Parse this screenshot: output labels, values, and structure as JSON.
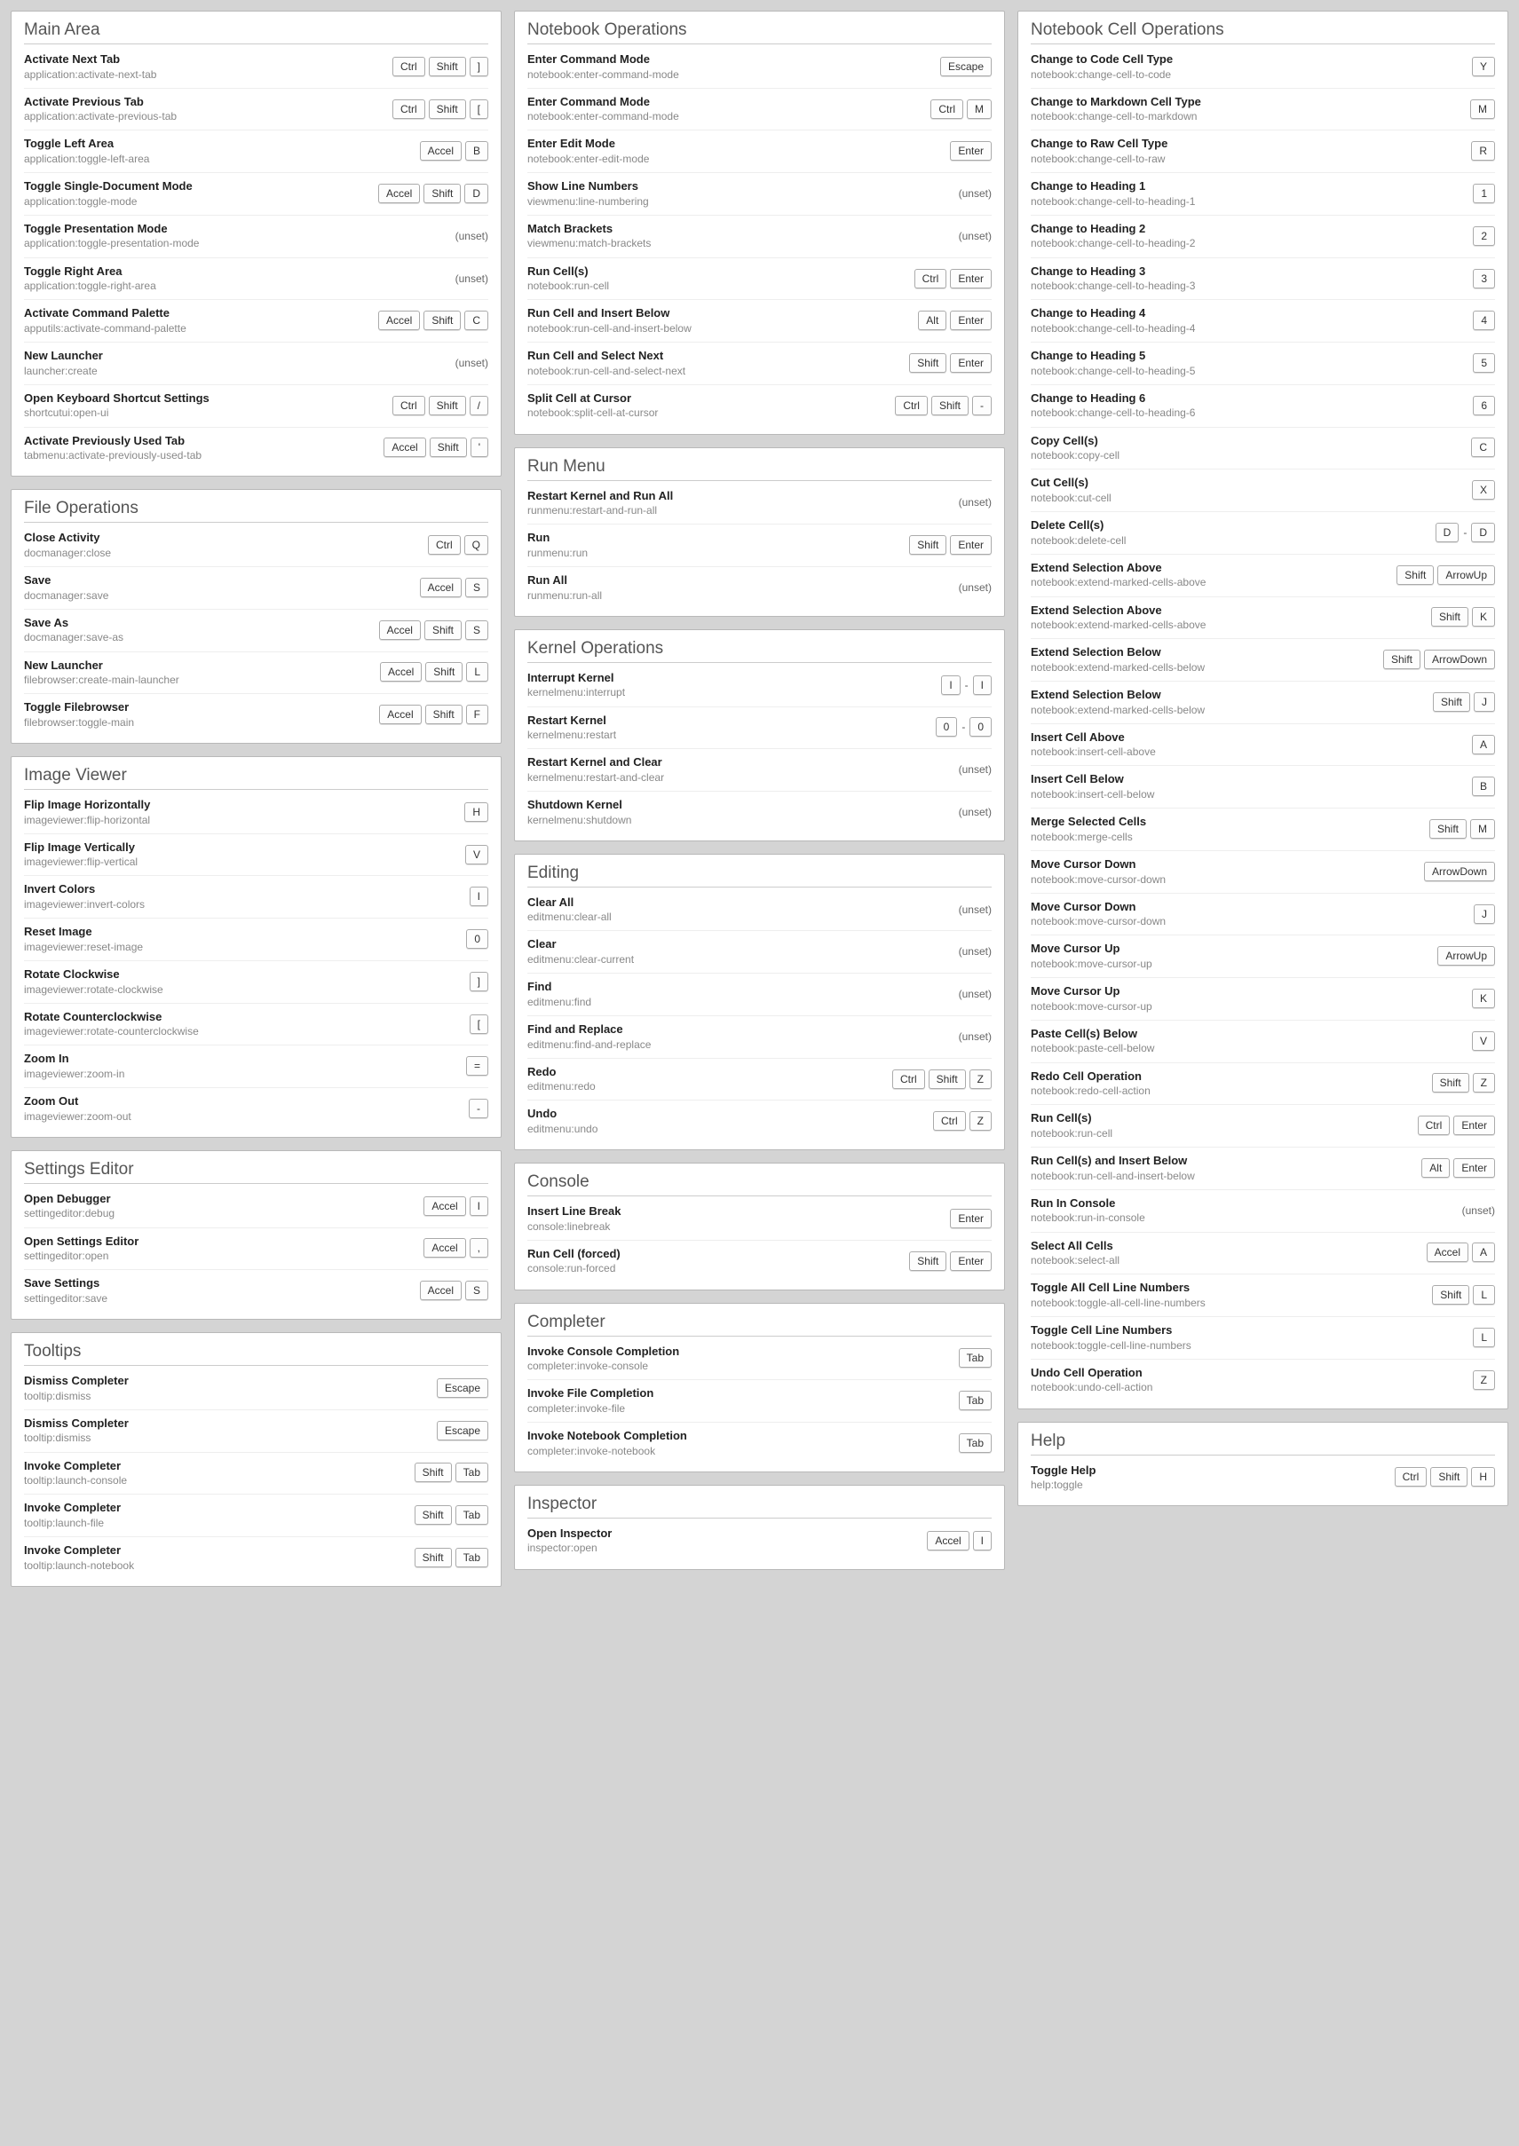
{
  "columns": [
    [
      {
        "title": "Main Area",
        "rows": [
          {
            "label": "Activate Next Tab",
            "cmd": "application:activate-next-tab",
            "keys": [
              "Ctrl",
              "Shift",
              "]"
            ]
          },
          {
            "label": "Activate Previous Tab",
            "cmd": "application:activate-previous-tab",
            "keys": [
              "Ctrl",
              "Shift",
              "["
            ]
          },
          {
            "label": "Toggle Left Area",
            "cmd": "application:toggle-left-area",
            "keys": [
              "Accel",
              "B"
            ]
          },
          {
            "label": "Toggle Single-Document Mode",
            "cmd": "application:toggle-mode",
            "keys": [
              "Accel",
              "Shift",
              "D"
            ]
          },
          {
            "label": "Toggle Presentation Mode",
            "cmd": "application:toggle-presentation-mode",
            "unset": true
          },
          {
            "label": "Toggle Right Area",
            "cmd": "application:toggle-right-area",
            "unset": true
          },
          {
            "label": "Activate Command Palette",
            "cmd": "apputils:activate-command-palette",
            "keys": [
              "Accel",
              "Shift",
              "C"
            ]
          },
          {
            "label": "New Launcher",
            "cmd": "launcher:create",
            "unset": true
          },
          {
            "label": "Open Keyboard Shortcut Settings",
            "cmd": "shortcutui:open-ui",
            "keys": [
              "Ctrl",
              "Shift",
              "/"
            ]
          },
          {
            "label": "Activate Previously Used Tab",
            "cmd": "tabmenu:activate-previously-used-tab",
            "keys": [
              "Accel",
              "Shift",
              "'"
            ]
          }
        ]
      },
      {
        "title": "File Operations",
        "rows": [
          {
            "label": "Close Activity",
            "cmd": "docmanager:close",
            "keys": [
              "Ctrl",
              "Q"
            ]
          },
          {
            "label": "Save",
            "cmd": "docmanager:save",
            "keys": [
              "Accel",
              "S"
            ]
          },
          {
            "label": "Save As",
            "cmd": "docmanager:save-as",
            "keys": [
              "Accel",
              "Shift",
              "S"
            ]
          },
          {
            "label": "New Launcher",
            "cmd": "filebrowser:create-main-launcher",
            "keys": [
              "Accel",
              "Shift",
              "L"
            ]
          },
          {
            "label": "Toggle Filebrowser",
            "cmd": "filebrowser:toggle-main",
            "keys": [
              "Accel",
              "Shift",
              "F"
            ]
          }
        ]
      },
      {
        "title": "Image Viewer",
        "rows": [
          {
            "label": "Flip Image Horizontally",
            "cmd": "imageviewer:flip-horizontal",
            "keys": [
              "H"
            ]
          },
          {
            "label": "Flip Image Vertically",
            "cmd": "imageviewer:flip-vertical",
            "keys": [
              "V"
            ]
          },
          {
            "label": "Invert Colors",
            "cmd": "imageviewer:invert-colors",
            "keys": [
              "I"
            ]
          },
          {
            "label": "Reset Image",
            "cmd": "imageviewer:reset-image",
            "keys": [
              "0"
            ]
          },
          {
            "label": "Rotate Clockwise",
            "cmd": "imageviewer:rotate-clockwise",
            "keys": [
              "]"
            ]
          },
          {
            "label": "Rotate Counterclockwise",
            "cmd": "imageviewer:rotate-counterclockwise",
            "keys": [
              "["
            ]
          },
          {
            "label": "Zoom In",
            "cmd": "imageviewer:zoom-in",
            "keys": [
              "="
            ]
          },
          {
            "label": "Zoom Out",
            "cmd": "imageviewer:zoom-out",
            "keys": [
              "-"
            ]
          }
        ]
      },
      {
        "title": "Settings Editor",
        "rows": [
          {
            "label": "Open Debugger",
            "cmd": "settingeditor:debug",
            "keys": [
              "Accel",
              "I"
            ]
          },
          {
            "label": "Open Settings Editor",
            "cmd": "settingeditor:open",
            "keys": [
              "Accel",
              ","
            ]
          },
          {
            "label": "Save Settings",
            "cmd": "settingeditor:save",
            "keys": [
              "Accel",
              "S"
            ]
          }
        ]
      },
      {
        "title": "Tooltips",
        "rows": [
          {
            "label": "Dismiss Completer",
            "cmd": "tooltip:dismiss",
            "keys": [
              "Escape"
            ]
          },
          {
            "label": "Dismiss Completer",
            "cmd": "tooltip:dismiss",
            "keys": [
              "Escape"
            ]
          },
          {
            "label": "Invoke Completer",
            "cmd": "tooltip:launch-console",
            "keys": [
              "Shift",
              "Tab"
            ]
          },
          {
            "label": "Invoke Completer",
            "cmd": "tooltip:launch-file",
            "keys": [
              "Shift",
              "Tab"
            ]
          },
          {
            "label": "Invoke Completer",
            "cmd": "tooltip:launch-notebook",
            "keys": [
              "Shift",
              "Tab"
            ]
          }
        ]
      }
    ],
    [
      {
        "title": "Notebook Operations",
        "rows": [
          {
            "label": "Enter Command Mode",
            "cmd": "notebook:enter-command-mode",
            "keys": [
              "Escape"
            ]
          },
          {
            "label": "Enter Command Mode",
            "cmd": "notebook:enter-command-mode",
            "keys": [
              "Ctrl",
              "M"
            ]
          },
          {
            "label": "Enter Edit Mode",
            "cmd": "notebook:enter-edit-mode",
            "keys": [
              "Enter"
            ]
          },
          {
            "label": "Show Line Numbers",
            "cmd": "viewmenu:line-numbering",
            "unset": true
          },
          {
            "label": "Match Brackets",
            "cmd": "viewmenu:match-brackets",
            "unset": true
          },
          {
            "label": "Run Cell(s)",
            "cmd": "notebook:run-cell",
            "keys": [
              "Ctrl",
              "Enter"
            ]
          },
          {
            "label": "Run Cell and Insert Below",
            "cmd": "notebook:run-cell-and-insert-below",
            "keys": [
              "Alt",
              "Enter"
            ]
          },
          {
            "label": "Run Cell and Select Next",
            "cmd": "notebook:run-cell-and-select-next",
            "keys": [
              "Shift",
              "Enter"
            ]
          },
          {
            "label": "Split Cell at Cursor",
            "cmd": "notebook:split-cell-at-cursor",
            "keys": [
              "Ctrl",
              "Shift",
              "-"
            ]
          }
        ]
      },
      {
        "title": "Run Menu",
        "rows": [
          {
            "label": "Restart Kernel and Run All",
            "cmd": "runmenu:restart-and-run-all",
            "unset": true
          },
          {
            "label": "Run",
            "cmd": "runmenu:run",
            "keys": [
              "Shift",
              "Enter"
            ]
          },
          {
            "label": "Run All",
            "cmd": "runmenu:run-all",
            "unset": true
          }
        ]
      },
      {
        "title": "Kernel Operations",
        "rows": [
          {
            "label": "Interrupt Kernel",
            "cmd": "kernelmenu:interrupt",
            "keys": [
              "I",
              "I"
            ],
            "chord": true
          },
          {
            "label": "Restart Kernel",
            "cmd": "kernelmenu:restart",
            "keys": [
              "0",
              "0"
            ],
            "chord": true
          },
          {
            "label": "Restart Kernel and Clear",
            "cmd": "kernelmenu:restart-and-clear",
            "unset": true
          },
          {
            "label": "Shutdown Kernel",
            "cmd": "kernelmenu:shutdown",
            "unset": true
          }
        ]
      },
      {
        "title": "Editing",
        "rows": [
          {
            "label": "Clear All",
            "cmd": "editmenu:clear-all",
            "unset": true
          },
          {
            "label": "Clear",
            "cmd": "editmenu:clear-current",
            "unset": true
          },
          {
            "label": "Find",
            "cmd": "editmenu:find",
            "unset": true
          },
          {
            "label": "Find and Replace",
            "cmd": "editmenu:find-and-replace",
            "unset": true
          },
          {
            "label": "Redo",
            "cmd": "editmenu:redo",
            "keys": [
              "Ctrl",
              "Shift",
              "Z"
            ]
          },
          {
            "label": "Undo",
            "cmd": "editmenu:undo",
            "keys": [
              "Ctrl",
              "Z"
            ]
          }
        ]
      },
      {
        "title": "Console",
        "rows": [
          {
            "label": "Insert Line Break",
            "cmd": "console:linebreak",
            "keys": [
              "Enter"
            ]
          },
          {
            "label": "Run Cell (forced)",
            "cmd": "console:run-forced",
            "keys": [
              "Shift",
              "Enter"
            ]
          }
        ]
      },
      {
        "title": "Completer",
        "rows": [
          {
            "label": "Invoke Console Completion",
            "cmd": "completer:invoke-console",
            "keys": [
              "Tab"
            ]
          },
          {
            "label": "Invoke File Completion",
            "cmd": "completer:invoke-file",
            "keys": [
              "Tab"
            ]
          },
          {
            "label": "Invoke Notebook Completion",
            "cmd": "completer:invoke-notebook",
            "keys": [
              "Tab"
            ]
          }
        ]
      },
      {
        "title": "Inspector",
        "rows": [
          {
            "label": "Open Inspector",
            "cmd": "inspector:open",
            "keys": [
              "Accel",
              "I"
            ]
          }
        ]
      }
    ],
    [
      {
        "title": "Notebook Cell Operations",
        "rows": [
          {
            "label": "Change to Code Cell Type",
            "cmd": "notebook:change-cell-to-code",
            "keys": [
              "Y"
            ]
          },
          {
            "label": "Change to Markdown Cell Type",
            "cmd": "notebook:change-cell-to-markdown",
            "keys": [
              "M"
            ]
          },
          {
            "label": "Change to Raw Cell Type",
            "cmd": "notebook:change-cell-to-raw",
            "keys": [
              "R"
            ]
          },
          {
            "label": "Change to Heading 1",
            "cmd": "notebook:change-cell-to-heading-1",
            "keys": [
              "1"
            ]
          },
          {
            "label": "Change to Heading 2",
            "cmd": "notebook:change-cell-to-heading-2",
            "keys": [
              "2"
            ]
          },
          {
            "label": "Change to Heading 3",
            "cmd": "notebook:change-cell-to-heading-3",
            "keys": [
              "3"
            ]
          },
          {
            "label": "Change to Heading 4",
            "cmd": "notebook:change-cell-to-heading-4",
            "keys": [
              "4"
            ]
          },
          {
            "label": "Change to Heading 5",
            "cmd": "notebook:change-cell-to-heading-5",
            "keys": [
              "5"
            ]
          },
          {
            "label": "Change to Heading 6",
            "cmd": "notebook:change-cell-to-heading-6",
            "keys": [
              "6"
            ]
          },
          {
            "label": "Copy Cell(s)",
            "cmd": "notebook:copy-cell",
            "keys": [
              "C"
            ]
          },
          {
            "label": "Cut Cell(s)",
            "cmd": "notebook:cut-cell",
            "keys": [
              "X"
            ]
          },
          {
            "label": "Delete Cell(s)",
            "cmd": "notebook:delete-cell",
            "keys": [
              "D",
              "D"
            ],
            "chord": true
          },
          {
            "label": "Extend Selection Above",
            "cmd": "notebook:extend-marked-cells-above",
            "keys": [
              "Shift",
              "ArrowUp"
            ]
          },
          {
            "label": "Extend Selection Above",
            "cmd": "notebook:extend-marked-cells-above",
            "keys": [
              "Shift",
              "K"
            ]
          },
          {
            "label": "Extend Selection Below",
            "cmd": "notebook:extend-marked-cells-below",
            "keys": [
              "Shift",
              "ArrowDown"
            ]
          },
          {
            "label": "Extend Selection Below",
            "cmd": "notebook:extend-marked-cells-below",
            "keys": [
              "Shift",
              "J"
            ]
          },
          {
            "label": "Insert Cell Above",
            "cmd": "notebook:insert-cell-above",
            "keys": [
              "A"
            ]
          },
          {
            "label": "Insert Cell Below",
            "cmd": "notebook:insert-cell-below",
            "keys": [
              "B"
            ]
          },
          {
            "label": "Merge Selected Cells",
            "cmd": "notebook:merge-cells",
            "keys": [
              "Shift",
              "M"
            ]
          },
          {
            "label": "Move Cursor Down",
            "cmd": "notebook:move-cursor-down",
            "keys": [
              "ArrowDown"
            ]
          },
          {
            "label": "Move Cursor Down",
            "cmd": "notebook:move-cursor-down",
            "keys": [
              "J"
            ]
          },
          {
            "label": "Move Cursor Up",
            "cmd": "notebook:move-cursor-up",
            "keys": [
              "ArrowUp"
            ]
          },
          {
            "label": "Move Cursor Up",
            "cmd": "notebook:move-cursor-up",
            "keys": [
              "K"
            ]
          },
          {
            "label": "Paste Cell(s) Below",
            "cmd": "notebook:paste-cell-below",
            "keys": [
              "V"
            ]
          },
          {
            "label": "Redo Cell Operation",
            "cmd": "notebook:redo-cell-action",
            "keys": [
              "Shift",
              "Z"
            ]
          },
          {
            "label": "Run Cell(s)",
            "cmd": "notebook:run-cell",
            "keys": [
              "Ctrl",
              "Enter"
            ]
          },
          {
            "label": "Run Cell(s) and Insert Below",
            "cmd": "notebook:run-cell-and-insert-below",
            "keys": [
              "Alt",
              "Enter"
            ]
          },
          {
            "label": "Run In Console",
            "cmd": "notebook:run-in-console",
            "unset": true
          },
          {
            "label": "Select All Cells",
            "cmd": "notebook:select-all",
            "keys": [
              "Accel",
              "A"
            ]
          },
          {
            "label": "Toggle All Cell Line Numbers",
            "cmd": "notebook:toggle-all-cell-line-numbers",
            "keys": [
              "Shift",
              "L"
            ]
          },
          {
            "label": "Toggle Cell Line Numbers",
            "cmd": "notebook:toggle-cell-line-numbers",
            "keys": [
              "L"
            ]
          },
          {
            "label": "Undo Cell Operation",
            "cmd": "notebook:undo-cell-action",
            "keys": [
              "Z"
            ]
          }
        ]
      },
      {
        "title": "Help",
        "rows": [
          {
            "label": "Toggle Help",
            "cmd": "help:toggle",
            "keys": [
              "Ctrl",
              "Shift",
              "H"
            ]
          }
        ]
      }
    ]
  ],
  "unsetLabel": "(unset)",
  "colors": {
    "bg": "#d4d4d4",
    "panel": "#ffffff",
    "border": "#b8b8b8",
    "title": "#555555",
    "rowBorder": "#eeeeee",
    "label": "#222222",
    "cmd": "#888888",
    "keyBorder": "#aaaaaa"
  }
}
